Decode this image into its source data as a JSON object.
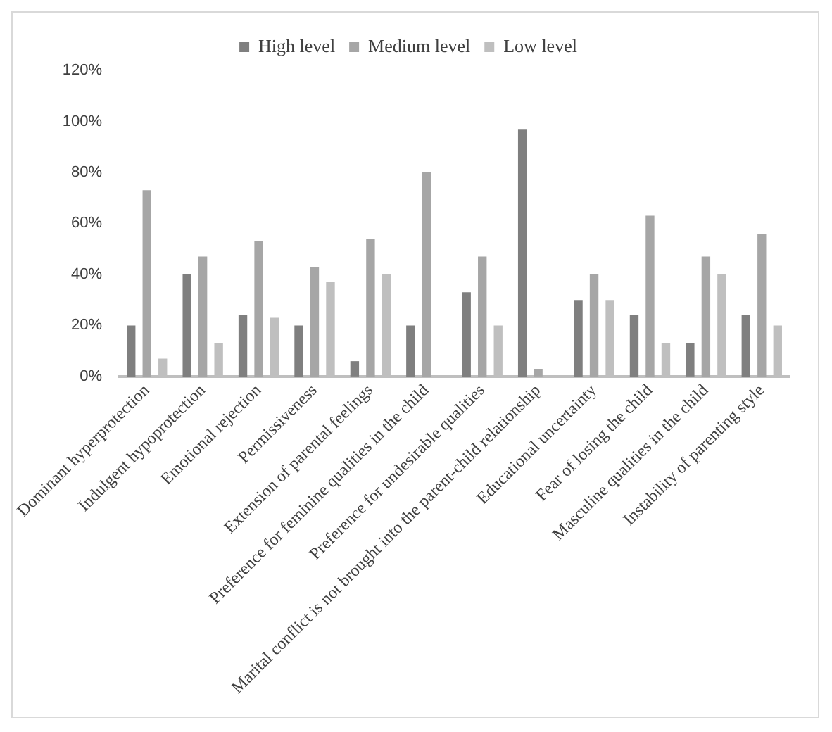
{
  "chart_data": {
    "type": "bar",
    "categories": [
      "Dominant hyperprotection",
      "Indulgent hypoprotection",
      "Emotional rejection",
      "Permissiveness",
      "Extension of parental feelings",
      "Preference for feminine qualities in the child",
      "Preference for undesirable qualities",
      "Marital conflict is not brought into the parent-child relationship",
      "Educational uncertainty",
      "Fear of losing the child",
      "Masculine qualities in the child",
      "Instability of parenting style"
    ],
    "series": [
      {
        "name": "High level",
        "color": "#7f7f7f",
        "values": [
          20,
          40,
          24,
          20,
          6,
          20,
          33,
          97,
          30,
          24,
          13,
          24
        ]
      },
      {
        "name": "Medium level",
        "color": "#a6a6a6",
        "values": [
          73,
          47,
          53,
          43,
          54,
          80,
          47,
          3,
          40,
          63,
          47,
          56
        ]
      },
      {
        "name": "Low level",
        "color": "#bfbfbf",
        "values": [
          7,
          13,
          23,
          37,
          40,
          0,
          20,
          0,
          30,
          13,
          40,
          20
        ]
      }
    ],
    "ylim": [
      0,
      120
    ],
    "yticks": [
      {
        "value": 0,
        "label": "0%"
      },
      {
        "value": 20,
        "label": "20%"
      },
      {
        "value": 40,
        "label": "40%"
      },
      {
        "value": 60,
        "label": "60%"
      },
      {
        "value": 80,
        "label": "80%"
      },
      {
        "value": 100,
        "label": "100%"
      },
      {
        "value": 120,
        "label": "120%"
      }
    ],
    "grid": false,
    "legend": "top"
  }
}
